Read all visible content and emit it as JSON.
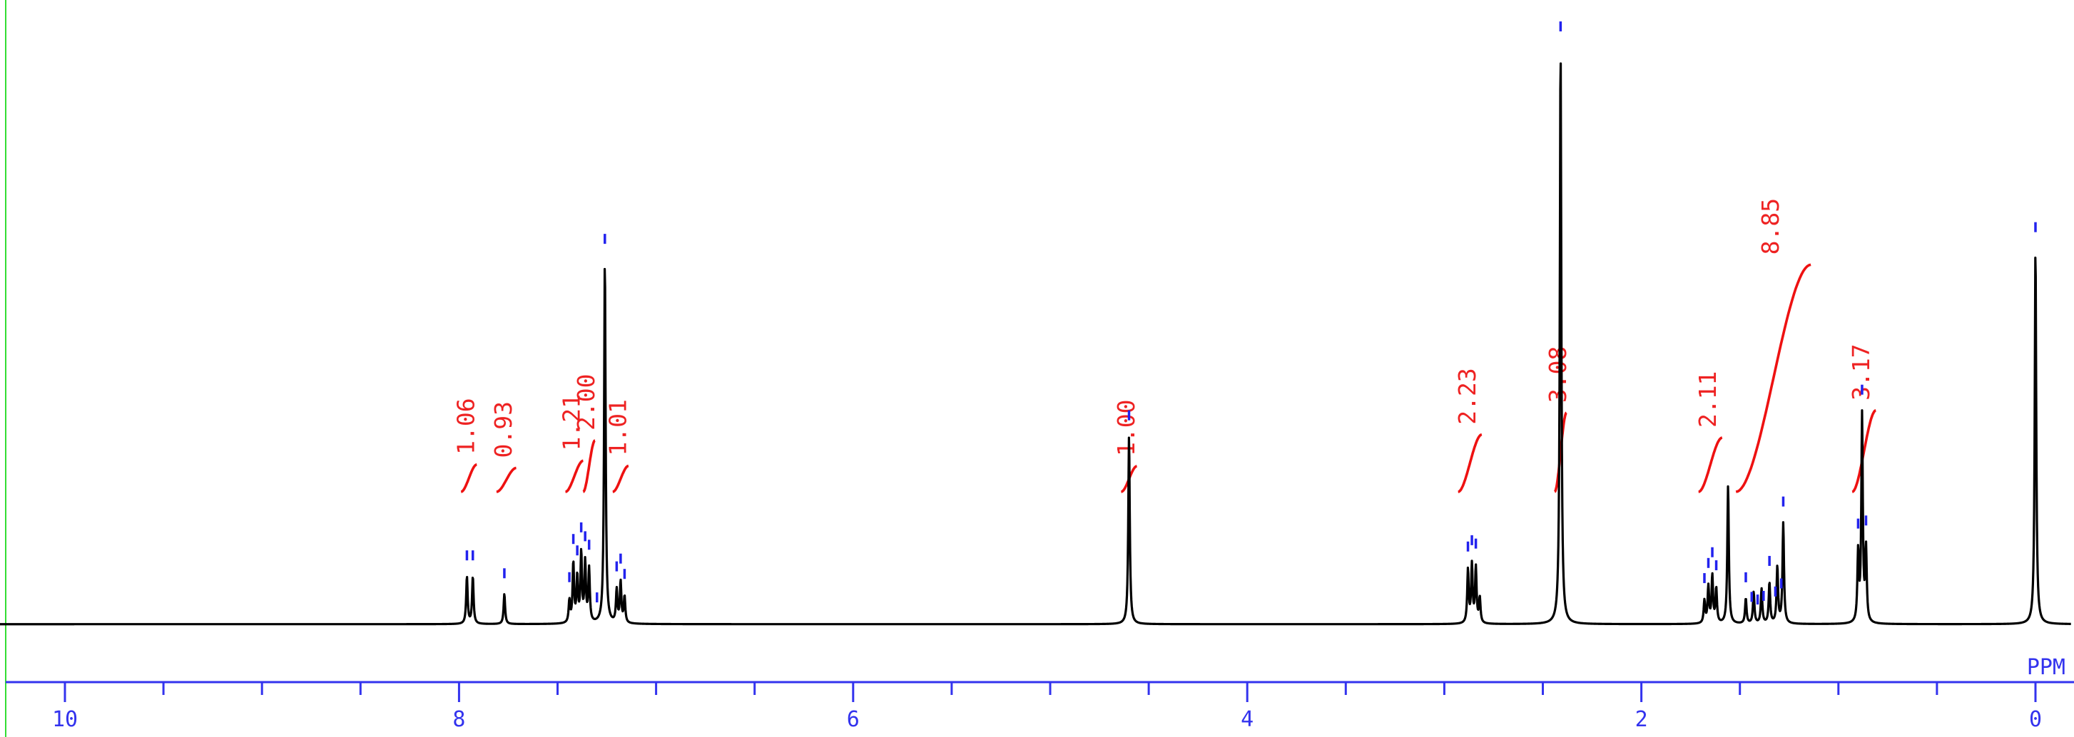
{
  "chart_data": {
    "type": "line",
    "title": "",
    "xlabel": "PPM",
    "ylabel": "",
    "x_reversed": true,
    "xlim": [
      10.3,
      -0.2
    ],
    "x_ticks": [
      10,
      8,
      6,
      4,
      2,
      0
    ],
    "x_minor_step": 0.5,
    "grid": false,
    "colors": {
      "trace": "#000000",
      "integral": "#ee1111",
      "axis": "#3333ee",
      "peak_marker": "#2222ee",
      "frame": "#33dd33"
    },
    "baseline": 0.006,
    "peaks": [
      {
        "ppm": 7.96,
        "height": 0.075
      },
      {
        "ppm": 7.93,
        "height": 0.075
      },
      {
        "ppm": 7.77,
        "height": 0.048
      },
      {
        "ppm": 7.44,
        "height": 0.035
      },
      {
        "ppm": 7.42,
        "height": 0.095
      },
      {
        "ppm": 7.4,
        "height": 0.072
      },
      {
        "ppm": 7.38,
        "height": 0.11
      },
      {
        "ppm": 7.36,
        "height": 0.095
      },
      {
        "ppm": 7.34,
        "height": 0.085
      },
      {
        "ppm": 7.26,
        "height": 0.58
      },
      {
        "ppm": 7.2,
        "height": 0.052
      },
      {
        "ppm": 7.18,
        "height": 0.065
      },
      {
        "ppm": 7.16,
        "height": 0.042
      },
      {
        "ppm": 4.6,
        "height": 0.3
      },
      {
        "ppm": 2.88,
        "height": 0.085
      },
      {
        "ppm": 2.86,
        "height": 0.092
      },
      {
        "ppm": 2.84,
        "height": 0.088
      },
      {
        "ppm": 2.82,
        "height": 0.04
      },
      {
        "ppm": 2.41,
        "height": 0.92
      },
      {
        "ppm": 1.68,
        "height": 0.036
      },
      {
        "ppm": 1.66,
        "height": 0.058
      },
      {
        "ppm": 1.64,
        "height": 0.075
      },
      {
        "ppm": 1.62,
        "height": 0.055
      },
      {
        "ppm": 1.56,
        "height": 0.22
      },
      {
        "ppm": 1.47,
        "height": 0.04
      },
      {
        "ppm": 1.43,
        "height": 0.05
      },
      {
        "ppm": 1.39,
        "height": 0.055
      },
      {
        "ppm": 1.35,
        "height": 0.065
      },
      {
        "ppm": 1.31,
        "height": 0.09
      },
      {
        "ppm": 1.28,
        "height": 0.16
      },
      {
        "ppm": 0.9,
        "height": 0.11
      },
      {
        "ppm": 0.88,
        "height": 0.33
      },
      {
        "ppm": 0.86,
        "height": 0.115
      },
      {
        "ppm": 0.0,
        "height": 0.6
      }
    ],
    "peak_markers": [
      7.96,
      7.93,
      7.77,
      7.44,
      7.42,
      7.4,
      7.38,
      7.36,
      7.34,
      7.3,
      7.26,
      7.2,
      7.18,
      7.16,
      4.6,
      2.88,
      2.86,
      2.84,
      2.41,
      1.68,
      1.66,
      1.64,
      1.62,
      1.47,
      1.44,
      1.41,
      1.38,
      1.35,
      1.32,
      1.29,
      1.28,
      0.9,
      0.88,
      0.86,
      0.0
    ],
    "integrals": [
      {
        "label": "1.06",
        "from": 7.99,
        "to": 7.91,
        "value": 1.06
      },
      {
        "label": "0.93",
        "from": 7.81,
        "to": 7.71,
        "value": 0.93
      },
      {
        "label": "1.21",
        "from": 7.46,
        "to": 7.37,
        "value": 1.21
      },
      {
        "label": "2.00",
        "from": 7.37,
        "to": 7.31,
        "value": 2.0
      },
      {
        "label": "1.01",
        "from": 7.22,
        "to": 7.14,
        "value": 1.01
      },
      {
        "label": "1.00",
        "from": 4.64,
        "to": 4.56,
        "value": 1.0
      },
      {
        "label": "2.23",
        "from": 2.93,
        "to": 2.81,
        "value": 2.23
      },
      {
        "label": "3.08",
        "from": 2.44,
        "to": 2.38,
        "value": 3.08
      },
      {
        "label": "2.11",
        "from": 1.71,
        "to": 1.59,
        "value": 2.11
      },
      {
        "label": "8.85",
        "from": 1.52,
        "to": 1.14,
        "value": 8.85
      },
      {
        "label": "3.17",
        "from": 0.93,
        "to": 0.81,
        "value": 3.17
      }
    ]
  }
}
